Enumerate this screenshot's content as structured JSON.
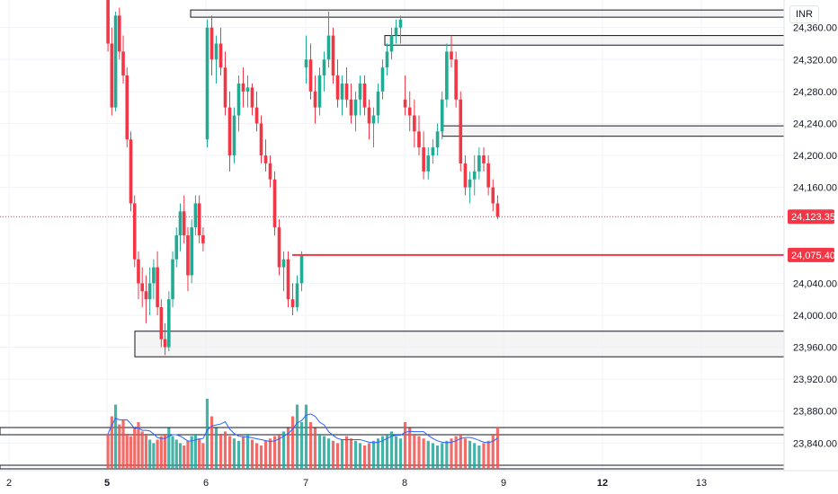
{
  "currency": "INR",
  "price_axis": {
    "ticks": [
      "24,360.00",
      "24,320.00",
      "24,280.00",
      "24,240.00",
      "24,200.00",
      "24,160.00",
      "24,040.00",
      "24,000.00",
      "23,960.00",
      "23,920.00",
      "23,880.00",
      "23,840.00"
    ],
    "tick_values": [
      24360,
      24320,
      24280,
      24240,
      24200,
      24160,
      24040,
      24000,
      23960,
      23920,
      23880,
      23840
    ]
  },
  "time_axis": {
    "labels": [
      {
        "text": "2",
        "bold": false
      },
      {
        "text": "5",
        "bold": true
      },
      {
        "text": "6",
        "bold": false
      },
      {
        "text": "7",
        "bold": false
      },
      {
        "text": "8",
        "bold": false
      },
      {
        "text": "9",
        "bold": false
      },
      {
        "text": "12",
        "bold": true
      },
      {
        "text": "13",
        "bold": false
      }
    ]
  },
  "price_labels": {
    "current": {
      "text": "24,123.35",
      "value": 24123.35,
      "color": "#f23645"
    },
    "level": {
      "text": "24,075.40",
      "value": 24075.4,
      "color": "#f23645"
    }
  },
  "colors": {
    "up": "#22ab94",
    "down": "#f23645",
    "ma": "#2962ff",
    "up_vol": "#26a69a",
    "down_vol": "#ef5350"
  },
  "chart_data": {
    "type": "candlestick",
    "y_range": [
      23810,
      24390
    ],
    "zones": [
      {
        "top": 24382,
        "bottom": 24373
      },
      {
        "top": 24350,
        "bottom": 24338
      },
      {
        "top": 24237,
        "bottom": 24224
      },
      {
        "top": 23980,
        "bottom": 23948
      }
    ],
    "level_line": 24075.4,
    "candles": [
      [
        24400,
        24410,
        24330,
        24340
      ],
      [
        24340,
        24360,
        24250,
        24260
      ],
      [
        24260,
        24380,
        24255,
        24375
      ],
      [
        24375,
        24385,
        24320,
        24330
      ],
      [
        24330,
        24350,
        24290,
        24300
      ],
      [
        24300,
        24310,
        24210,
        24220
      ],
      [
        24220,
        24230,
        24130,
        24140
      ],
      [
        24140,
        24150,
        24060,
        24070
      ],
      [
        24070,
        24080,
        24020,
        24040
      ],
      [
        24040,
        24060,
        24010,
        24030
      ],
      [
        24030,
        24050,
        23990,
        24020
      ],
      [
        24020,
        24060,
        24000,
        24040
      ],
      [
        24040,
        24070,
        24020,
        24060
      ],
      [
        24060,
        24080,
        24000,
        24010
      ],
      [
        24010,
        24020,
        23960,
        23970
      ],
      [
        23970,
        23990,
        23950,
        23960
      ],
      [
        23960,
        24030,
        23955,
        24020
      ],
      [
        24020,
        24080,
        24010,
        24070
      ],
      [
        24070,
        24110,
        24060,
        24100
      ],
      [
        24100,
        24140,
        24080,
        24130
      ],
      [
        24130,
        24150,
        24090,
        24100
      ],
      [
        24100,
        24110,
        24030,
        24050
      ],
      [
        24050,
        24120,
        24040,
        24110
      ],
      [
        24110,
        24150,
        24100,
        24140
      ],
      [
        24140,
        24150,
        24090,
        24100
      ],
      [
        24100,
        24110,
        24080,
        24090
      ],
      [
        24220,
        24370,
        24210,
        24360
      ],
      [
        24360,
        24375,
        24300,
        24320
      ],
      [
        24320,
        24350,
        24290,
        24340
      ],
      [
        24340,
        24360,
        24300,
        24310
      ],
      [
        24310,
        24330,
        24250,
        24260
      ],
      [
        24260,
        24280,
        24180,
        24200
      ],
      [
        24200,
        24260,
        24190,
        24250
      ],
      [
        24250,
        24300,
        24230,
        24290
      ],
      [
        24290,
        24310,
        24260,
        24280
      ],
      [
        24280,
        24300,
        24260,
        24285
      ],
      [
        24285,
        24290,
        24250,
        24260
      ],
      [
        24260,
        24280,
        24230,
        24240
      ],
      [
        24240,
        24250,
        24190,
        24200
      ],
      [
        24200,
        24220,
        24180,
        24190
      ],
      [
        24190,
        24200,
        24160,
        24170
      ],
      [
        24170,
        24180,
        24100,
        24110
      ],
      [
        24110,
        24120,
        24050,
        24060
      ],
      [
        24060,
        24080,
        24030,
        24070
      ],
      [
        24070,
        24080,
        24010,
        24020
      ],
      [
        24020,
        24040,
        24000,
        24010
      ],
      [
        24010,
        24050,
        24005,
        24040
      ],
      [
        24040,
        24080,
        24030,
        24075
      ],
      [
        24310,
        24350,
        24290,
        24320
      ],
      [
        24320,
        24340,
        24270,
        24280
      ],
      [
        24280,
        24300,
        24240,
        24260
      ],
      [
        24260,
        24310,
        24250,
        24300
      ],
      [
        24300,
        24330,
        24280,
        24320
      ],
      [
        24320,
        24380,
        24310,
        24350
      ],
      [
        24350,
        24360,
        24290,
        24300
      ],
      [
        24300,
        24320,
        24260,
        24270
      ],
      [
        24270,
        24300,
        24250,
        24290
      ],
      [
        24290,
        24310,
        24260,
        24270
      ],
      [
        24270,
        24290,
        24240,
        24250
      ],
      [
        24250,
        24280,
        24230,
        24270
      ],
      [
        24270,
        24300,
        24250,
        24290
      ],
      [
        24290,
        24300,
        24250,
        24260
      ],
      [
        24260,
        24270,
        24220,
        24240
      ],
      [
        24240,
        24260,
        24210,
        24250
      ],
      [
        24250,
        24290,
        24240,
        24280
      ],
      [
        24280,
        24320,
        24270,
        24310
      ],
      [
        24310,
        24340,
        24300,
        24330
      ],
      [
        24330,
        24360,
        24320,
        24350
      ],
      [
        24350,
        24370,
        24340,
        24360
      ],
      [
        24360,
        24375,
        24340,
        24370
      ],
      [
        24270,
        24300,
        24250,
        24260
      ],
      [
        24260,
        24280,
        24230,
        24250
      ],
      [
        24250,
        24270,
        24210,
        24230
      ],
      [
        24230,
        24250,
        24200,
        24210
      ],
      [
        24210,
        24230,
        24170,
        24180
      ],
      [
        24180,
        24210,
        24170,
        24200
      ],
      [
        24200,
        24220,
        24190,
        24210
      ],
      [
        24210,
        24240,
        24200,
        24230
      ],
      [
        24230,
        24280,
        24220,
        24270
      ],
      [
        24270,
        24340,
        24260,
        24330
      ],
      [
        24330,
        24350,
        24310,
        24320
      ],
      [
        24320,
        24330,
        24260,
        24270
      ],
      [
        24270,
        24280,
        24180,
        24190
      ],
      [
        24190,
        24200,
        24150,
        24160
      ],
      [
        24160,
        24180,
        24140,
        24170
      ],
      [
        24170,
        24200,
        24150,
        24180
      ],
      [
        24180,
        24210,
        24170,
        24200
      ],
      [
        24200,
        24210,
        24180,
        24190
      ],
      [
        24190,
        24200,
        24150,
        24160
      ],
      [
        24160,
        24170,
        24130,
        24140
      ],
      [
        24140,
        24150,
        24120,
        24123.35
      ]
    ],
    "volumes": [
      0.3,
      0.45,
      0.55,
      0.38,
      0.42,
      0.3,
      0.28,
      0.35,
      0.4,
      0.32,
      0.3,
      0.25,
      0.22,
      0.25,
      0.28,
      0.3,
      0.35,
      0.28,
      0.25,
      0.22,
      0.2,
      0.24,
      0.28,
      0.3,
      0.26,
      0.22,
      0.6,
      0.45,
      0.35,
      0.3,
      0.32,
      0.28,
      0.26,
      0.24,
      0.28,
      0.3,
      0.25,
      0.22,
      0.2,
      0.24,
      0.26,
      0.28,
      0.3,
      0.32,
      0.35,
      0.45,
      0.55,
      0.4,
      0.55,
      0.4,
      0.35,
      0.3,
      0.28,
      0.26,
      0.24,
      0.22,
      0.25,
      0.28,
      0.26,
      0.24,
      0.22,
      0.2,
      0.22,
      0.24,
      0.26,
      0.28,
      0.3,
      0.32,
      0.28,
      0.26,
      0.4,
      0.35,
      0.3,
      0.28,
      0.26,
      0.24,
      0.22,
      0.2,
      0.22,
      0.24,
      0.26,
      0.28,
      0.3,
      0.26,
      0.24,
      0.22,
      0.2,
      0.22,
      0.24,
      0.3,
      0.36
    ]
  }
}
